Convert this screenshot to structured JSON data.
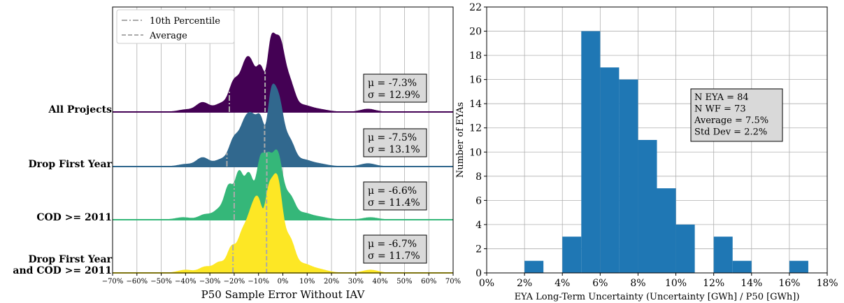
{
  "chart_data": [
    {
      "type": "area",
      "subtype": "ridgeline",
      "xlabel": "P50 Sample Error Without IAV",
      "xlim": [
        -70,
        70
      ],
      "xticks": [
        -70,
        -60,
        -50,
        -40,
        -30,
        -20,
        -10,
        0,
        10,
        20,
        30,
        40,
        50,
        60,
        70
      ],
      "tick_suffix": "%",
      "grid": true,
      "legend": {
        "placement": "top-left",
        "entries": [
          {
            "label": "10th Percentile",
            "style": "dashdot",
            "color": "#aaaaaa"
          },
          {
            "label": "Average",
            "style": "dashed",
            "color": "#aaaaaa"
          }
        ]
      },
      "series": [
        {
          "name": "All Projects",
          "color": "#440154",
          "mu_text": "μ = -7.3%",
          "sigma_text": "σ = 12.9%",
          "p10": -22,
          "mean": -7.3,
          "components": [
            [
              -33,
              2.6,
              0.13
            ],
            [
              -25,
              3,
              0.12
            ],
            [
              -20,
              2,
              0.38
            ],
            [
              -16,
              2,
              0.42
            ],
            [
              -13,
              2.2,
              0.58
            ],
            [
              -9,
              1.6,
              0.52
            ],
            [
              -5,
              1.5,
              0.74
            ],
            [
              -1.5,
              2.2,
              1.0
            ],
            [
              3,
              2,
              0.34
            ],
            [
              8,
              3,
              0.08
            ],
            [
              14,
              4,
              0.04
            ],
            [
              35,
              3,
              0.04
            ],
            [
              -40,
              3,
              0.03
            ]
          ]
        },
        {
          "name": "Drop First Year",
          "color": "#31688e",
          "mu_text": "μ = -7.5%",
          "sigma_text": "σ = 13.1%",
          "p10": -23,
          "mean": -7.5,
          "components": [
            [
              -33,
              2.5,
              0.12
            ],
            [
              -25,
              3,
              0.1
            ],
            [
              -20,
              2,
              0.34
            ],
            [
              -16,
              2,
              0.44
            ],
            [
              -12.5,
              2.2,
              0.6
            ],
            [
              -9,
              1.6,
              0.5
            ],
            [
              -5,
              1.5,
              0.65
            ],
            [
              -2,
              2.2,
              0.94
            ],
            [
              3,
              2,
              0.3
            ],
            [
              8,
              3,
              0.08
            ],
            [
              14,
              4,
              0.04
            ],
            [
              35,
              3,
              0.04
            ],
            [
              -40,
              3,
              0.03
            ]
          ]
        },
        {
          "name": "COD >= 2011",
          "color": "#35b779",
          "mu_text": "μ = -6.6%",
          "sigma_text": "σ = 11.4%",
          "p10": -20,
          "mean": -6.6,
          "components": [
            [
              -32,
              2.5,
              0.07
            ],
            [
              -26,
              2.4,
              0.14
            ],
            [
              -22,
              1.8,
              0.44
            ],
            [
              -18,
              1.6,
              0.6
            ],
            [
              -14,
              1.8,
              0.62
            ],
            [
              -9,
              1.8,
              0.84
            ],
            [
              -6,
              1.4,
              0.44
            ],
            [
              -2.5,
              2.3,
              0.95
            ],
            [
              3,
              2,
              0.28
            ],
            [
              8,
              3,
              0.08
            ],
            [
              14,
              4,
              0.04
            ],
            [
              36,
              3,
              0.03
            ],
            [
              -41,
              3,
              0.03
            ]
          ]
        },
        {
          "name": "Drop First Year\nand COD >= 2011",
          "color": "#fde725",
          "mu_text": "μ = -6.7%",
          "sigma_text": "σ = 11.7%",
          "p10": -20.5,
          "mean": -6.7,
          "components": [
            [
              -32,
              2.4,
              0.06
            ],
            [
              -26,
              2.4,
              0.11
            ],
            [
              -21,
              1.8,
              0.25
            ],
            [
              -17,
              1.8,
              0.32
            ],
            [
              -13.5,
              2,
              0.47
            ],
            [
              -10,
              2,
              0.67
            ],
            [
              -6,
              1.5,
              0.5
            ],
            [
              -2.5,
              2.3,
              1.0
            ],
            [
              3,
              2,
              0.3
            ],
            [
              8,
              3,
              0.08
            ],
            [
              14,
              4,
              0.04
            ],
            [
              36,
              3,
              0.03
            ],
            [
              -40,
              3,
              0.03
            ]
          ]
        }
      ]
    },
    {
      "type": "bar",
      "subtype": "histogram",
      "xlabel": "EYA Long-Term Uncertainty (Uncertainty [GWh] / P50 [GWh])",
      "ylabel": "Number of EYAs",
      "xlim": [
        0,
        18
      ],
      "ylim": [
        0,
        22
      ],
      "xticks": [
        0,
        2,
        4,
        6,
        8,
        10,
        12,
        14,
        16,
        18
      ],
      "yticks": [
        0,
        2,
        4,
        6,
        8,
        10,
        12,
        14,
        16,
        18,
        20,
        22
      ],
      "tick_suffix": "%",
      "grid": true,
      "color": "#1f77b4",
      "bins": [
        {
          "x0": 2,
          "x1": 3,
          "count": 1
        },
        {
          "x0": 4,
          "x1": 5,
          "count": 3
        },
        {
          "x0": 5,
          "x1": 6,
          "count": 20
        },
        {
          "x0": 6,
          "x1": 7,
          "count": 17
        },
        {
          "x0": 7,
          "x1": 8,
          "count": 16
        },
        {
          "x0": 8,
          "x1": 9,
          "count": 11
        },
        {
          "x0": 9,
          "x1": 10,
          "count": 7
        },
        {
          "x0": 10,
          "x1": 11,
          "count": 4
        },
        {
          "x0": 12,
          "x1": 13,
          "count": 3
        },
        {
          "x0": 13,
          "x1": 14,
          "count": 1
        },
        {
          "x0": 16,
          "x1": 17,
          "count": 1
        }
      ],
      "stats_box": [
        "N EYA = 84",
        "N WF = 73",
        "Average = 7.5%",
        "Std Dev = 2.2%"
      ]
    }
  ]
}
